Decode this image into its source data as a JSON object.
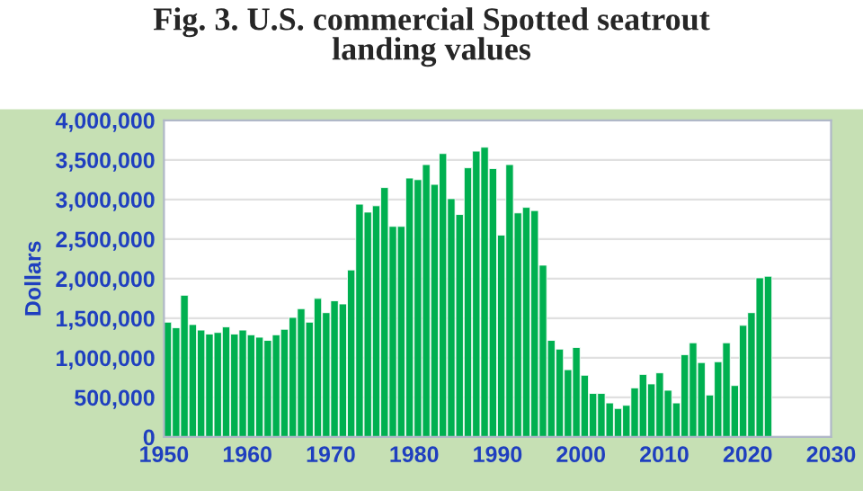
{
  "chart_data": {
    "type": "bar",
    "title": "Fig. 3. U.S. commercial Spotted seatrout\nlanding values",
    "ylabel": "Dollars",
    "x": [
      1950,
      1951,
      1952,
      1953,
      1954,
      1955,
      1956,
      1957,
      1958,
      1959,
      1960,
      1961,
      1962,
      1963,
      1964,
      1965,
      1966,
      1967,
      1968,
      1969,
      1970,
      1971,
      1972,
      1973,
      1974,
      1975,
      1976,
      1977,
      1978,
      1979,
      1980,
      1981,
      1982,
      1983,
      1984,
      1985,
      1986,
      1987,
      1988,
      1989,
      1990,
      1991,
      1992,
      1993,
      1994,
      1995,
      1996,
      1997,
      1998,
      1999,
      2000,
      2001,
      2002,
      2003,
      2004,
      2005,
      2006,
      2007,
      2008,
      2009,
      2010,
      2011,
      2012,
      2013,
      2014,
      2015,
      2016,
      2017,
      2018,
      2019,
      2020,
      2021,
      2022
    ],
    "values": [
      1450000,
      1380000,
      1790000,
      1420000,
      1350000,
      1300000,
      1320000,
      1390000,
      1300000,
      1350000,
      1290000,
      1260000,
      1220000,
      1290000,
      1360000,
      1510000,
      1620000,
      1450000,
      1750000,
      1570000,
      1720000,
      1680000,
      2110000,
      2940000,
      2840000,
      2920000,
      3150000,
      2660000,
      2660000,
      3270000,
      3250000,
      3440000,
      3190000,
      3580000,
      3010000,
      2810000,
      3400000,
      3610000,
      3660000,
      3390000,
      2550000,
      3440000,
      2830000,
      2900000,
      2860000,
      2170000,
      1220000,
      1110000,
      850000,
      1130000,
      780000,
      550000,
      550000,
      430000,
      360000,
      400000,
      620000,
      790000,
      670000,
      810000,
      590000,
      430000,
      1040000,
      1190000,
      940000,
      530000,
      950000,
      1190000,
      650000,
      1410000,
      1570000,
      2010000,
      2030000
    ],
    "color": "#00b050",
    "xlim": [
      1950,
      2030
    ],
    "xticks": [
      1950,
      1960,
      1970,
      1980,
      1990,
      2000,
      2010,
      2020,
      2030
    ],
    "ylim": [
      0,
      4000000
    ],
    "yticks": [
      {
        "value": 0,
        "label": "0"
      },
      {
        "value": 500000,
        "label": "500,000"
      },
      {
        "value": 1000000,
        "label": "1,000,000"
      },
      {
        "value": 1500000,
        "label": "1,500,000"
      },
      {
        "value": 2000000,
        "label": "2,000,000"
      },
      {
        "value": 2500000,
        "label": "2,500,000"
      },
      {
        "value": 3000000,
        "label": "3,000,000"
      },
      {
        "value": 3500000,
        "label": "3,500,000"
      },
      {
        "value": 4000000,
        "label": "4,000,000"
      }
    ],
    "grid": "y",
    "legend": false
  }
}
